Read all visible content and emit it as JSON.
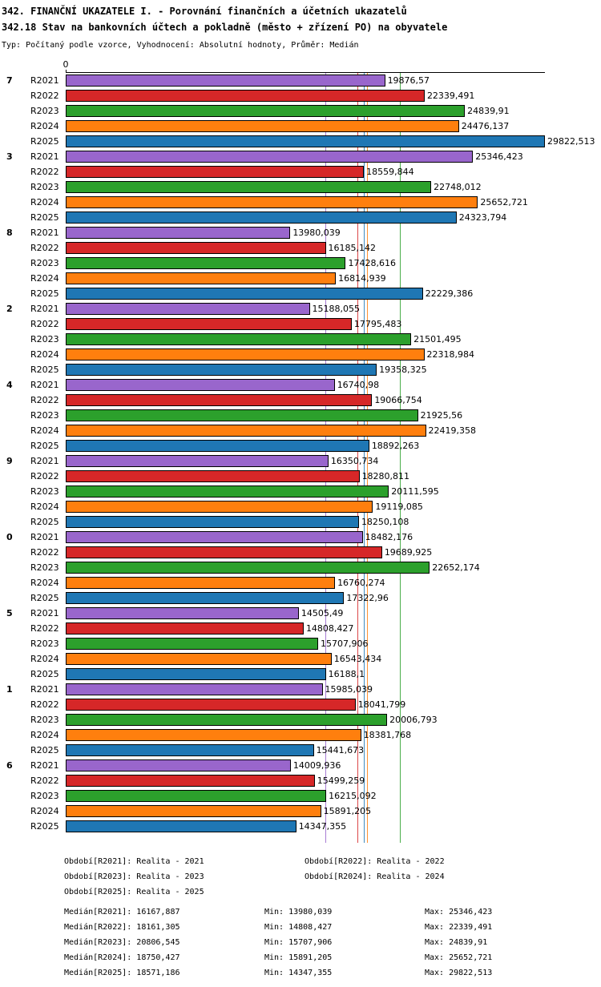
{
  "title": "342. FINANČNÍ UKAZATELE I. - Porovnání finančních a účetních ukazatelů",
  "subtitle": "342.18 Stav na bankovních účtech a pokladně (město + zřízení PO) na obyvatele",
  "meta": "Typ: Počítaný podle vzorce, Vyhodnocení: Absolutní hodnoty, Průměr: Medián",
  "chart_data": {
    "type": "bar",
    "orientation": "horizontal",
    "x_axis": {
      "zero_label": "0",
      "xlim": [
        0,
        29822.513
      ],
      "grid": false
    },
    "legend_position": "bottom",
    "series": [
      {
        "name": "R2021",
        "color": "#9966cc",
        "median": 16167.887
      },
      {
        "name": "R2022",
        "color": "#d62728",
        "median": 18161.305
      },
      {
        "name": "R2023",
        "color": "#2ca02c",
        "median": 20806.545
      },
      {
        "name": "R2024",
        "color": "#ff7f0e",
        "median": 18750.427
      },
      {
        "name": "R2025",
        "color": "#1f77b4",
        "median": 18571.186
      }
    ],
    "groups": [
      {
        "label": "7",
        "values": [
          19876.57,
          22339.491,
          24839.91,
          24476.137,
          29822.513
        ],
        "value_labels": [
          "19876,57",
          "22339,491",
          "24839,91",
          "24476,137",
          "29822,513"
        ]
      },
      {
        "label": "3",
        "values": [
          25346.423,
          18559.844,
          22748.012,
          25652.721,
          24323.794
        ],
        "value_labels": [
          "25346,423",
          "18559,844",
          "22748,012",
          "25652,721",
          "24323,794"
        ]
      },
      {
        "label": "8",
        "values": [
          13980.039,
          16185.142,
          17428.616,
          16814.939,
          22229.386
        ],
        "value_labels": [
          "13980,039",
          "16185,142",
          "17428,616",
          "16814,939",
          "22229,386"
        ]
      },
      {
        "label": "2",
        "values": [
          15188.055,
          17795.483,
          21501.495,
          22318.984,
          19358.325
        ],
        "value_labels": [
          "15188,055",
          "17795,483",
          "21501,495",
          "22318,984",
          "19358,325"
        ]
      },
      {
        "label": "4",
        "values": [
          16740.98,
          19066.754,
          21925.56,
          22419.358,
          18892.263
        ],
        "value_labels": [
          "16740,98",
          "19066,754",
          "21925,56",
          "22419,358",
          "18892,263"
        ]
      },
      {
        "label": "9",
        "values": [
          16350.734,
          18280.811,
          20111.595,
          19119.085,
          18250.108
        ],
        "value_labels": [
          "16350,734",
          "18280,811",
          "20111,595",
          "19119,085",
          "18250,108"
        ]
      },
      {
        "label": "0",
        "values": [
          18482.176,
          19689.925,
          22652.174,
          16760.274,
          17322.96
        ],
        "value_labels": [
          "18482,176",
          "19689,925",
          "22652,174",
          "16760,274",
          "17322,96"
        ]
      },
      {
        "label": "5",
        "values": [
          14505.49,
          14808.427,
          15707.906,
          16543.434,
          16188.1
        ],
        "value_labels": [
          "14505,49",
          "14808,427",
          "15707,906",
          "16543,434",
          "16188,1"
        ]
      },
      {
        "label": "1",
        "values": [
          15985.039,
          18041.799,
          20006.793,
          18381.768,
          15441.673
        ],
        "value_labels": [
          "15985,039",
          "18041,799",
          "20006,793",
          "18381,768",
          "15441,673"
        ]
      },
      {
        "label": "6",
        "values": [
          14009.936,
          15499.259,
          16215.092,
          15891.205,
          14347.355
        ],
        "value_labels": [
          "14009,936",
          "15499,259",
          "16215,092",
          "15891,205",
          "14347,355"
        ]
      }
    ]
  },
  "footer": {
    "periods": [
      "Období[R2021]: Realita - 2021",
      "Období[R2022]: Realita - 2022",
      "Období[R2023]: Realita - 2023",
      "Období[R2024]: Realita - 2024",
      "Období[R2025]: Realita - 2025"
    ],
    "stats": [
      {
        "median": "Medián[R2021]: 16167,887",
        "min": "Min: 13980,039",
        "max": "Max: 25346,423"
      },
      {
        "median": "Medián[R2022]: 18161,305",
        "min": "Min: 14808,427",
        "max": "Max: 22339,491"
      },
      {
        "median": "Medián[R2023]: 20806,545",
        "min": "Min: 15707,906",
        "max": "Max: 24839,91"
      },
      {
        "median": "Medián[R2024]: 18750,427",
        "min": "Min: 15891,205",
        "max": "Max: 25652,721"
      },
      {
        "median": "Medián[R2025]: 18571,186",
        "min": "Min: 14347,355",
        "max": "Max: 29822,513"
      }
    ]
  }
}
